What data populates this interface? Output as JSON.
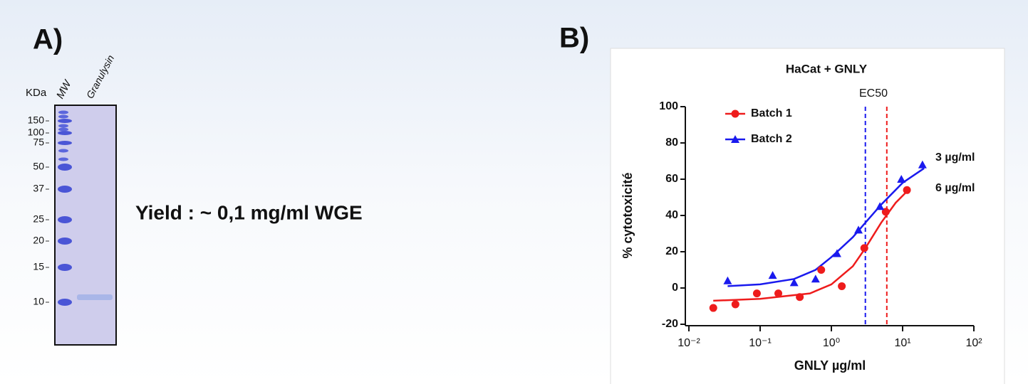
{
  "panel_a": {
    "label": "A)",
    "units": "KDa",
    "lanes": [
      "MW",
      "Granulysin"
    ],
    "markers": [
      150,
      100,
      75,
      50,
      37,
      25,
      20,
      15,
      10
    ],
    "yield": "Yield : ~ 0,1 mg/ml WGE"
  },
  "panel_b_label": "B)",
  "chart_data": {
    "type": "scatter",
    "title": "HaCat + GNLY",
    "x_label": "GNLY µg/ml",
    "y_label": "% cytotoxicité",
    "x_scale": "log",
    "xlim": [
      0.01,
      100
    ],
    "xticks": [
      {
        "value": 0.01,
        "label": "10⁻²"
      },
      {
        "value": 0.1,
        "label": "10⁻¹"
      },
      {
        "value": 1,
        "label": "10⁰"
      },
      {
        "value": 10,
        "label": "10¹"
      },
      {
        "value": 100,
        "label": "10²"
      }
    ],
    "ylim": [
      -20,
      100
    ],
    "yticks": [
      -20,
      0,
      20,
      40,
      60,
      80,
      100
    ],
    "legend": "top-left",
    "series": [
      {
        "name": "Batch 1",
        "color": "#ee1c1c",
        "marker": "circle",
        "x": [
          0.022,
          0.045,
          0.09,
          0.18,
          0.36,
          0.72,
          1.4,
          2.9,
          5.8,
          11.5
        ],
        "values": [
          -11,
          -9,
          -3,
          -3,
          -5,
          10,
          1,
          22,
          42,
          54
        ]
      },
      {
        "name": "Batch 2",
        "color": "#1a1aee",
        "marker": "triangle",
        "x": [
          0.035,
          0.15,
          0.3,
          0.6,
          1.2,
          2.4,
          4.8,
          9.6,
          19
        ],
        "values": [
          4,
          7,
          3,
          5,
          19,
          32,
          45,
          60,
          68
        ]
      }
    ],
    "fits": [
      {
        "color": "#ee1c1c",
        "x": [
          0.022,
          0.1,
          0.5,
          1,
          2,
          3,
          5,
          8,
          12
        ],
        "values": [
          -7,
          -6,
          -3,
          2,
          12,
          22,
          36,
          47,
          54
        ]
      },
      {
        "color": "#1a1aee",
        "x": [
          0.035,
          0.1,
          0.3,
          0.6,
          1,
          2,
          3,
          5,
          10,
          20
        ],
        "values": [
          1,
          2,
          5,
          10,
          17,
          28,
          36,
          46,
          58,
          66
        ]
      }
    ],
    "annotation": "EC50",
    "reference_lines": [
      {
        "x": 3,
        "color": "#1a1aee",
        "label": "3 µg/ml"
      },
      {
        "x": 6,
        "color": "#ee1c1c",
        "label": "6 µg/ml"
      }
    ]
  }
}
